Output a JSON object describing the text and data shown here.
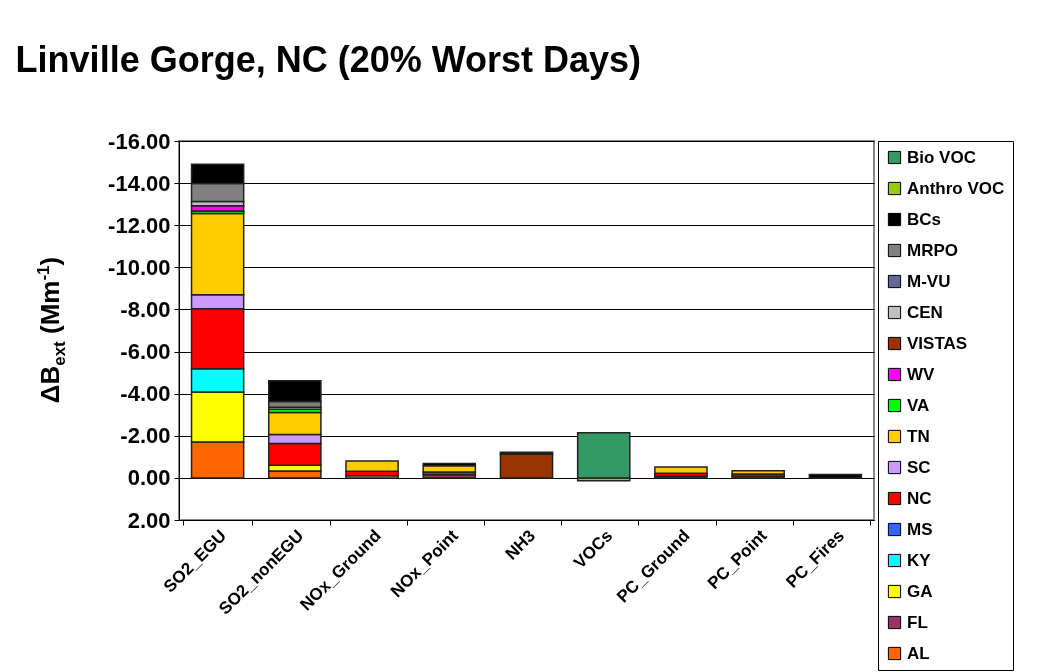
{
  "chart_data": {
    "type": "bar",
    "stacked": true,
    "title": "Linville Gorge, NC (20% Worst Days)",
    "ylabel": "ΔB$_{ext}$ (Mm$^{-1}$)",
    "categories": [
      "SO2_EGU",
      "SO2_nonEGU",
      "NOx_Ground",
      "NOx_Point",
      "NH3",
      "VOCs",
      "PC_Ground",
      "PC_Point",
      "PC_Fires"
    ],
    "ylim": [
      2,
      -16
    ],
    "yticks": [
      {
        "value": 2,
        "label": "2.00"
      },
      {
        "value": 0,
        "label": "0.00"
      },
      {
        "value": -2,
        "label": "-2.00"
      },
      {
        "value": -4,
        "label": "-4.00"
      },
      {
        "value": -6,
        "label": "-6.00"
      },
      {
        "value": -8,
        "label": "-8.00"
      },
      {
        "value": -10,
        "label": "-10.00"
      },
      {
        "value": -12,
        "label": "-12.00"
      },
      {
        "value": -14,
        "label": "-14.00"
      },
      {
        "value": -16,
        "label": "-16.00"
      }
    ],
    "grid": "y",
    "legend": "right",
    "series": [
      {
        "name": "AL",
        "color": "#ff6600",
        "values": [
          -1.71,
          -0.33,
          null,
          null,
          null,
          null,
          null,
          null,
          null
        ]
      },
      {
        "name": "FL",
        "color": "#993366",
        "values": [
          null,
          null,
          null,
          -0.15,
          null,
          null,
          -0.08,
          -0.08,
          null
        ]
      },
      {
        "name": "GA",
        "color": "#ffff00",
        "values": [
          -2.37,
          -0.27,
          -0.1,
          null,
          null,
          null,
          null,
          null,
          null
        ]
      },
      {
        "name": "KY",
        "color": "#00ffff",
        "values": [
          -1.1,
          null,
          null,
          null,
          null,
          null,
          null,
          null,
          null
        ]
      },
      {
        "name": "MS",
        "color": "#3366ff",
        "values": [
          null,
          null,
          null,
          null,
          null,
          null,
          null,
          null,
          null
        ]
      },
      {
        "name": "NC",
        "color": "#ff0000",
        "values": [
          -2.85,
          -1.03,
          -0.22,
          -0.13,
          null,
          null,
          -0.14,
          -0.1,
          null
        ]
      },
      {
        "name": "SC",
        "color": "#cc99ff",
        "values": [
          -0.67,
          -0.43,
          null,
          null,
          null,
          null,
          null,
          null,
          null
        ]
      },
      {
        "name": "TN",
        "color": "#ffcc00",
        "values": [
          -3.86,
          -1.05,
          -0.48,
          -0.3,
          null,
          null,
          -0.3,
          -0.16,
          null
        ]
      },
      {
        "name": "VA",
        "color": "#00ff00",
        "values": [
          -0.12,
          -0.15,
          null,
          null,
          null,
          null,
          null,
          null,
          null
        ]
      },
      {
        "name": "WV",
        "color": "#ff00ff",
        "values": [
          -0.24,
          null,
          null,
          null,
          null,
          null,
          null,
          null,
          null
        ]
      },
      {
        "name": "VISTAS",
        "color": "#993300",
        "values": [
          null,
          null,
          null,
          null,
          -1.14,
          null,
          null,
          null,
          null
        ]
      },
      {
        "name": "CEN",
        "color": "#c0c0c0",
        "values": [
          -0.21,
          -0.1,
          null,
          null,
          null,
          null,
          null,
          null,
          null
        ]
      },
      {
        "name": "M-VU",
        "color": "#666699",
        "values": [
          null,
          null,
          null,
          null,
          null,
          null,
          null,
          null,
          null
        ]
      },
      {
        "name": "MRPO",
        "color": "#808080",
        "values": [
          -0.85,
          -0.27,
          null,
          null,
          null,
          null,
          null,
          null,
          null
        ]
      },
      {
        "name": "BCs",
        "color": "#000000",
        "values": [
          -0.92,
          -0.98,
          null,
          -0.1,
          -0.08,
          null,
          null,
          null,
          -0.16
        ]
      },
      {
        "name": "Anthro VOC",
        "color": "#99cc00",
        "values": [
          null,
          null,
          null,
          null,
          null,
          0.14,
          null,
          null,
          null
        ]
      },
      {
        "name": "Bio VOC",
        "color": "#339966",
        "values": [
          null,
          null,
          null,
          null,
          null,
          -2.14,
          null,
          null,
          null
        ]
      }
    ]
  }
}
